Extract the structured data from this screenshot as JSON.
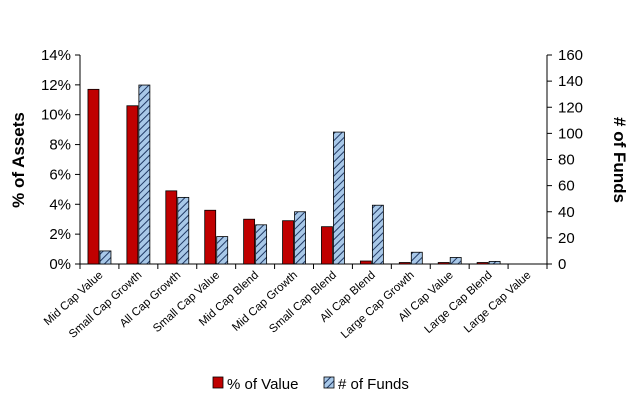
{
  "chart_data": {
    "type": "bar",
    "categories": [
      "Mid Cap Value",
      "Small Cap Growth",
      "All Cap Growth",
      "Small Cap Value",
      "Mid Cap Blend",
      "Mid Cap Growth",
      "Small Cap Blend",
      "All Cap Blend",
      "Large Cap Growth",
      "All Cap Value",
      "Large Cap Blend",
      "Large Cap Value"
    ],
    "series": [
      {
        "name": "% of Value",
        "axis": "left",
        "color": "#c00000",
        "values": [
          11.7,
          10.6,
          4.9,
          3.6,
          3.0,
          2.9,
          2.5,
          0.2,
          0.1,
          0.1,
          0.1,
          0.0
        ]
      },
      {
        "name": "# of Funds",
        "axis": "right",
        "color": "#a8c8e8",
        "pattern": "diagonal-hatch",
        "values": [
          10,
          137,
          51,
          21,
          30,
          40,
          101,
          45,
          9,
          5,
          2,
          0
        ]
      }
    ],
    "ylabel": "% of Assets",
    "ylabel_right": "# of Funds",
    "ylim": [
      0,
      14
    ],
    "ylim_right": [
      0,
      160
    ],
    "yticks": [
      "0%",
      "2%",
      "4%",
      "6%",
      "8%",
      "10%",
      "12%",
      "14%"
    ],
    "yticks_right": [
      "0",
      "20",
      "40",
      "60",
      "80",
      "100",
      "120",
      "140",
      "160"
    ],
    "grid": false,
    "legend_position": "bottom"
  }
}
